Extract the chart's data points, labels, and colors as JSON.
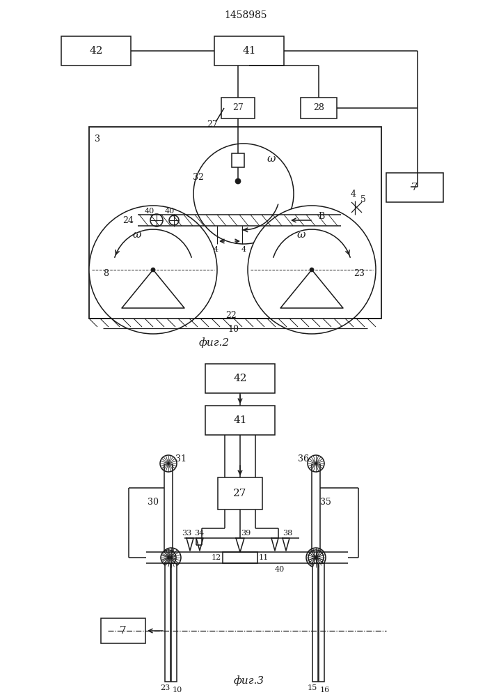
{
  "title": "1458985",
  "fig2_label": "фиг.2",
  "fig3_label": "фиг.3",
  "bg_color": "#ffffff",
  "line_color": "#1a1a1a",
  "lw": 1.1
}
